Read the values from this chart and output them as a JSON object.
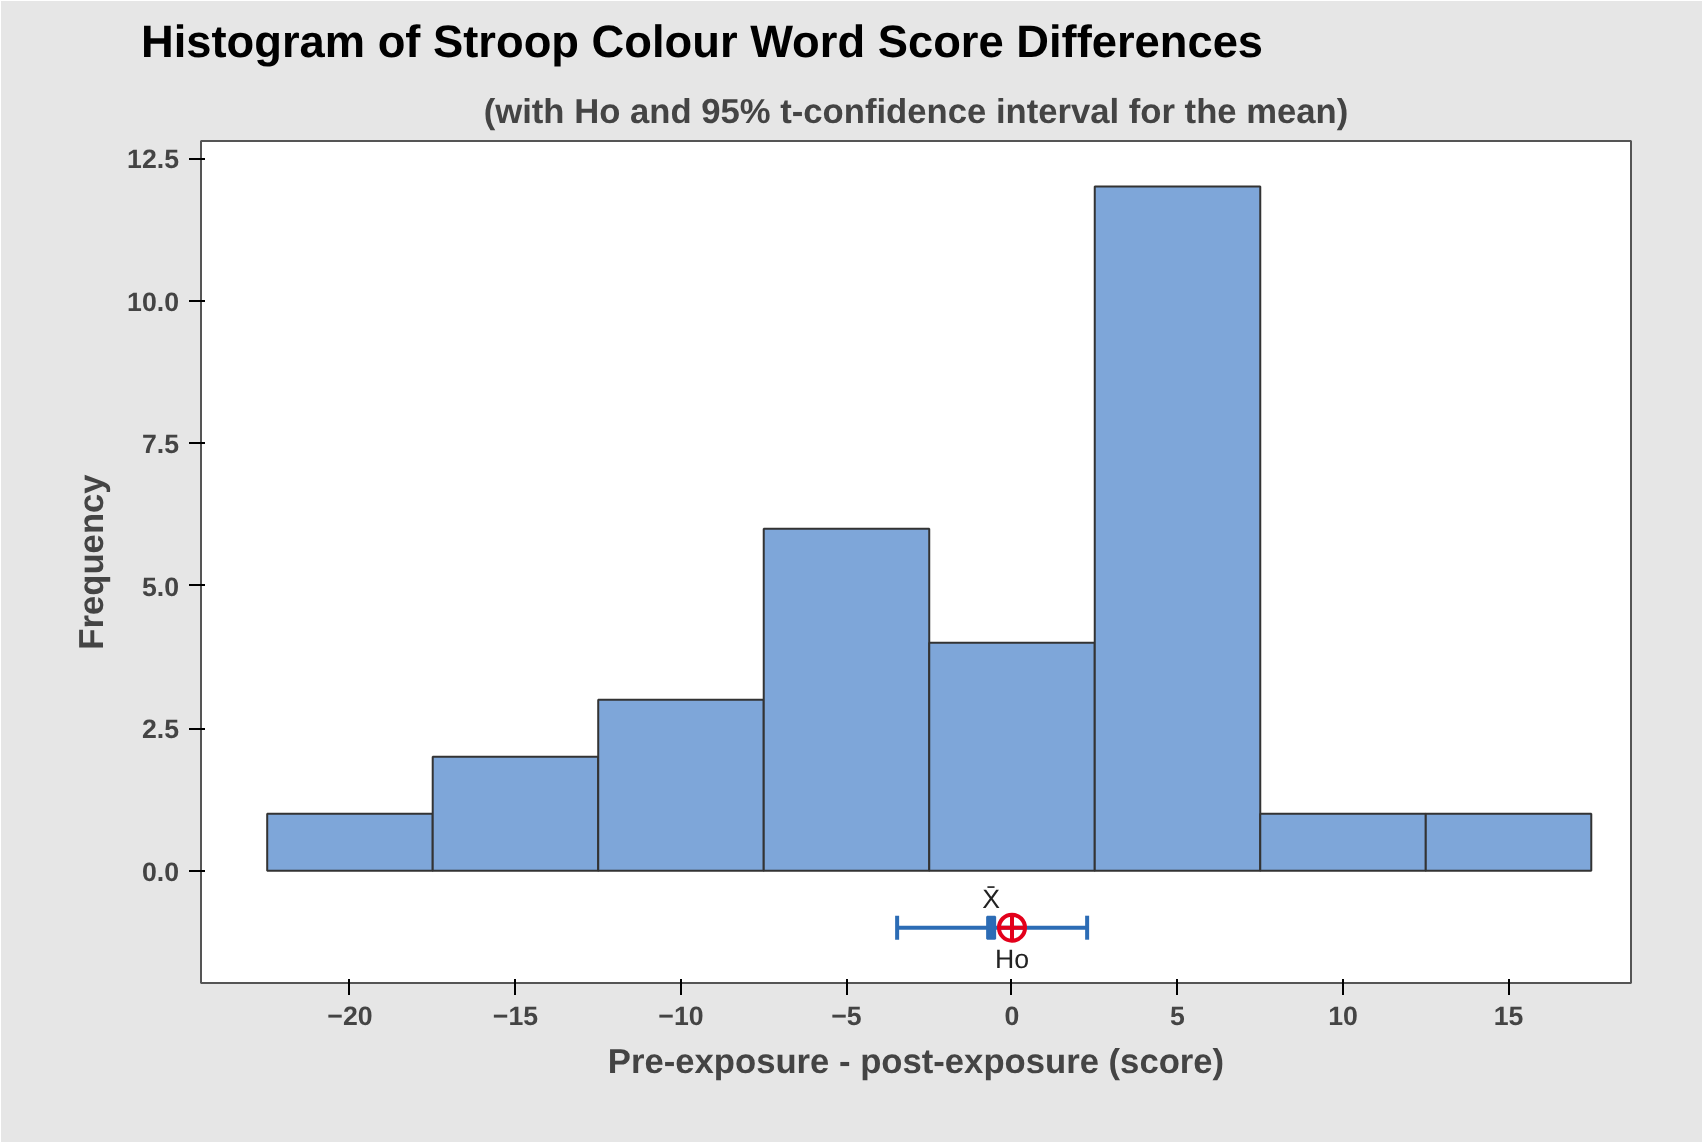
{
  "chart_data": {
    "type": "histogram",
    "title": "Histogram of Stroop Colour Word Score Differences",
    "subtitle": "(with Ho and 95% t-confidence interval for the mean)",
    "xlabel": "Pre-exposure - post-exposure (score)",
    "ylabel": "Frequency",
    "xlim": [
      -24.5,
      18.7
    ],
    "ylim": [
      -1.97,
      12.8
    ],
    "xticks": [
      -20,
      -15,
      -10,
      -5,
      0,
      5,
      10,
      15
    ],
    "yticks": [
      {
        "value": 0,
        "label": "0.0"
      },
      {
        "value": 2.5,
        "label": "2.5"
      },
      {
        "value": 5,
        "label": "5.0"
      },
      {
        "value": 7.5,
        "label": "7.5"
      },
      {
        "value": 10,
        "label": "10.0"
      },
      {
        "value": 12.5,
        "label": "12.5"
      }
    ],
    "grid": false,
    "series": [
      {
        "color": "#7ea6d9",
        "bins": [
          -22.5,
          -17.5,
          -12.5,
          -7.5,
          -2.5,
          2.5,
          7.5,
          12.5,
          17.5
        ],
        "values": [
          1,
          2,
          3,
          6,
          4,
          12,
          1,
          1
        ]
      },
      {
        "type": "scatter",
        "name": "X̄",
        "color": "#2c6cb5",
        "x": [
          -0.63
        ],
        "values": [
          -1
        ],
        "xerrors": [
          [
            -3.47,
            2.27
          ]
        ]
      },
      {
        "type": "scatter",
        "name": "Ho",
        "color": "#e3001b",
        "marker": "circle",
        "x": [
          0
        ],
        "values": [
          -1
        ]
      }
    ]
  }
}
